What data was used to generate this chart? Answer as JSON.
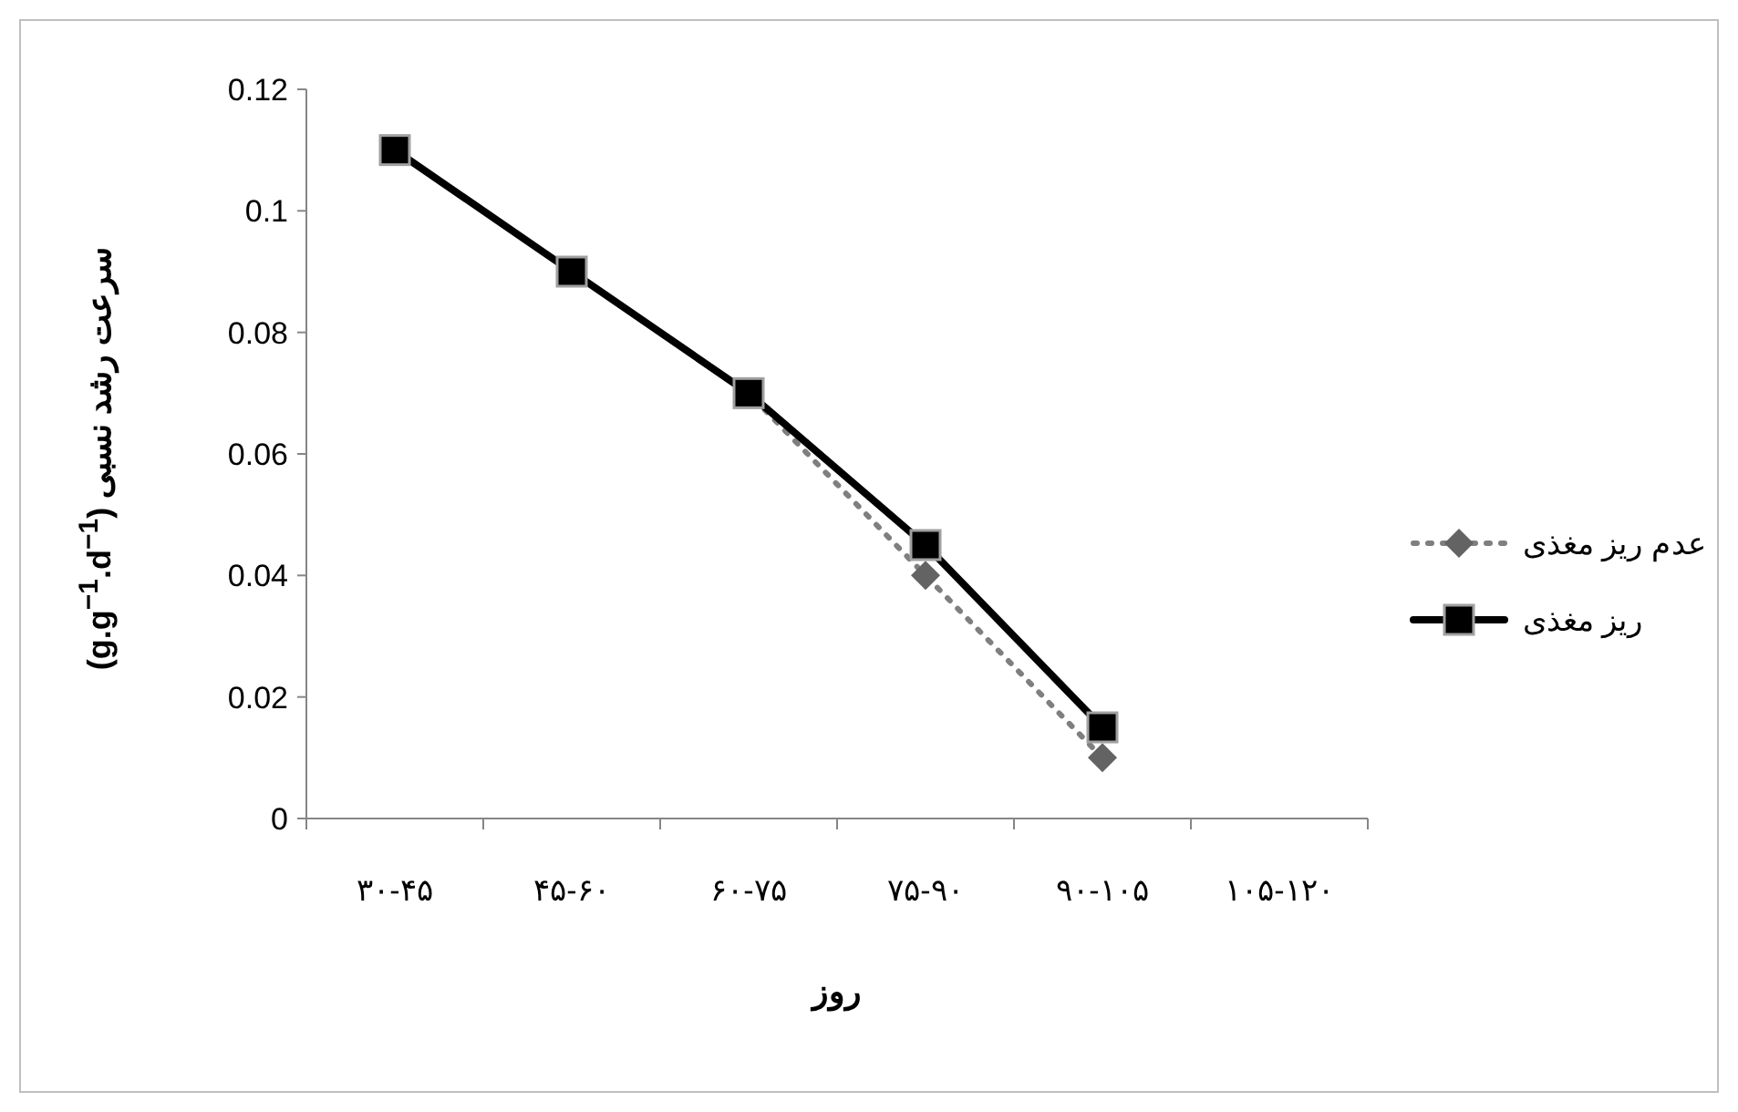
{
  "chart_data": {
    "type": "line",
    "categories": [
      "۳۰-۴۵",
      "۴۵-۶۰",
      "۶۰-۷۵",
      "۷۵-۹۰",
      "۹۰-۱۰۵",
      "۱۰۵-۱۲۰"
    ],
    "series": [
      {
        "name": "عدم ریز مغذی",
        "color": "#7f7f7f",
        "marker": "diamond",
        "line_style": "dotted",
        "values": [
          0.11,
          0.09,
          0.07,
          0.04,
          0.01,
          null
        ]
      },
      {
        "name": "ریز مغذی",
        "color": "#000000",
        "marker": "square",
        "line_style": "solid",
        "values": [
          0.11,
          0.09,
          0.07,
          0.045,
          0.015,
          null
        ]
      }
    ],
    "ylim": [
      0,
      0.12
    ],
    "yticks": [
      0,
      0.02,
      0.04,
      0.06,
      0.08,
      0.1,
      0.12
    ],
    "xlabel": "روز",
    "ylabel": "سرعت رشد نسبی (g.g$^{−1}$.d$^{−1}$)",
    "grid": false,
    "legend": "right"
  }
}
